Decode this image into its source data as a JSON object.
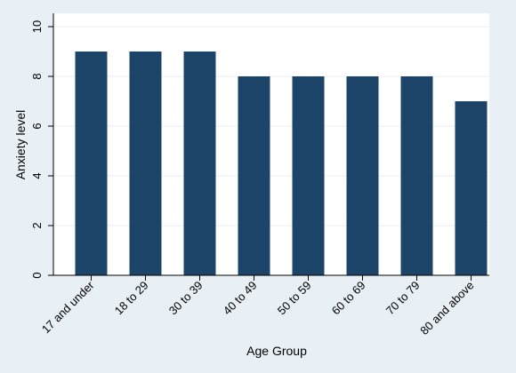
{
  "chart_data": {
    "type": "bar",
    "title": "",
    "xlabel": "Age Group",
    "ylabel": "Anxiety level",
    "categories": [
      "17 and under",
      "18 to 29",
      "30 to 39",
      "40 to 49",
      "50 to 59",
      "60 to 69",
      "70 to 79",
      "80 and above"
    ],
    "values": [
      9,
      9,
      9,
      8,
      8,
      8,
      8,
      7
    ],
    "ylim": [
      0,
      10
    ],
    "yticks": [
      0,
      2,
      4,
      6,
      8,
      10
    ],
    "grid": "horizontal",
    "legend": "none",
    "colors": {
      "bar": "#1b4468",
      "plot_background": "#ffffff",
      "outer_background": "#e8eff5",
      "grid": "#e9eef3"
    }
  }
}
